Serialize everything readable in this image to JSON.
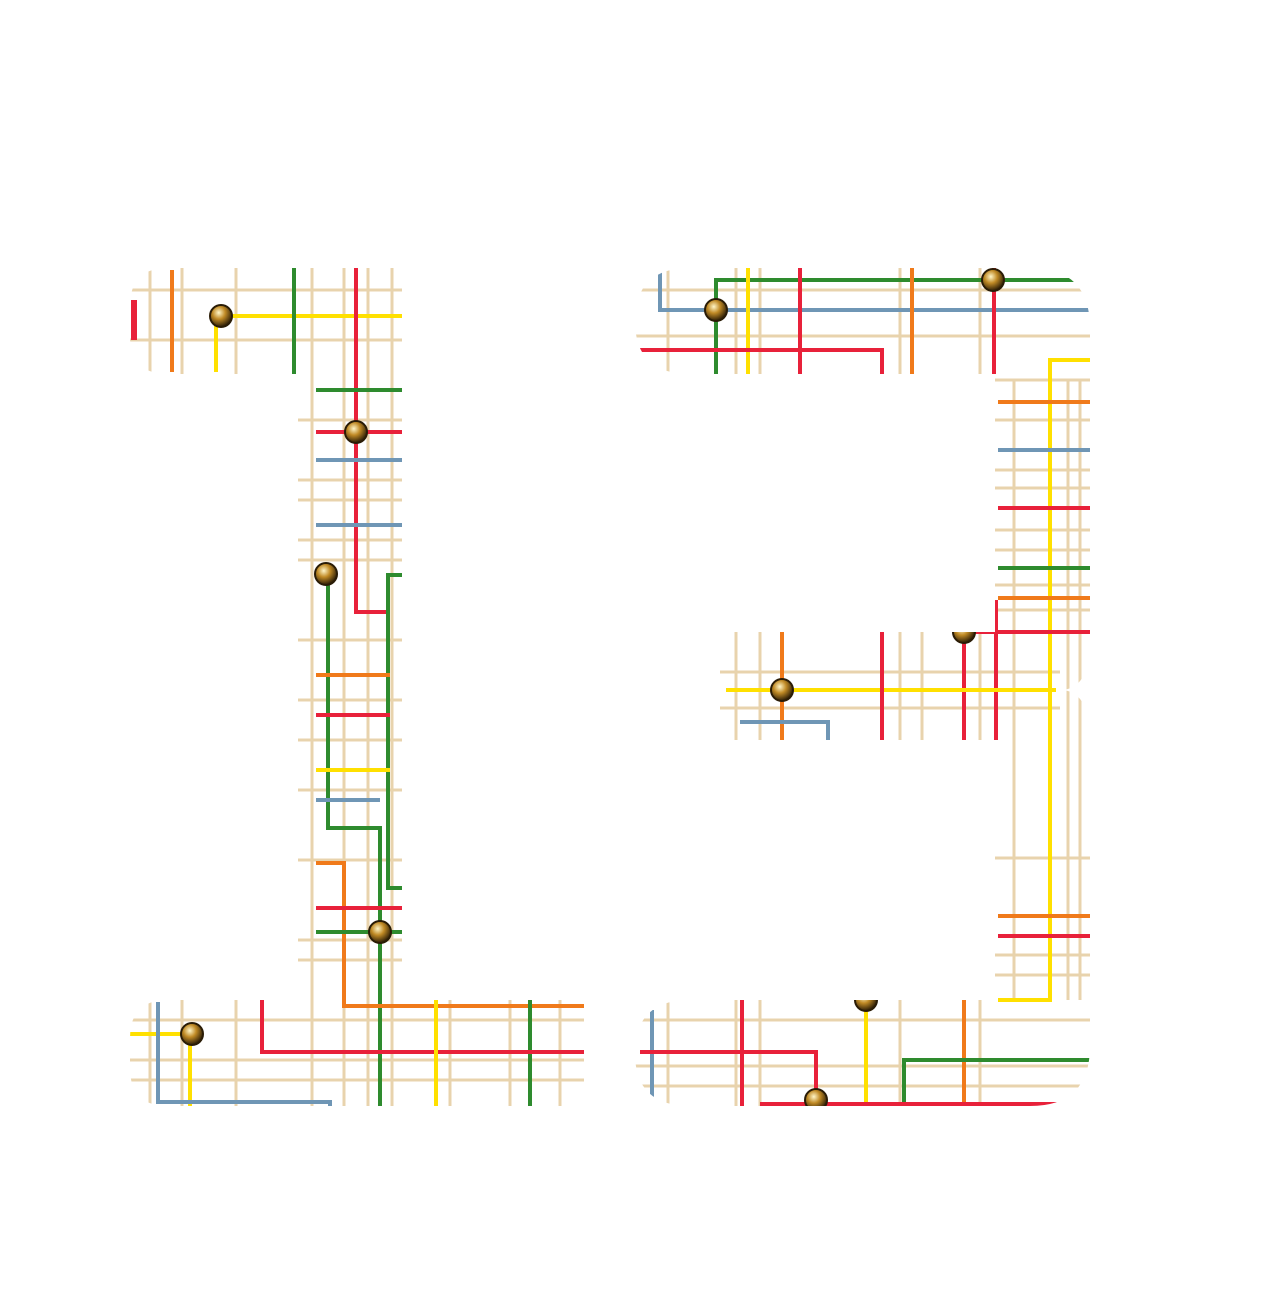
{
  "artwork": {
    "characters": [
      "1",
      "3"
    ],
    "pattern": "transit-map-lines",
    "background_color": "#ffffff"
  },
  "palette": {
    "red": "#e8213a",
    "orange": "#f07a1a",
    "yellow": "#ffe000",
    "green": "#2e8b2e",
    "steel_blue": "#6f96b5",
    "tan": "#e6cfa5",
    "station": "#3a2a10"
  }
}
